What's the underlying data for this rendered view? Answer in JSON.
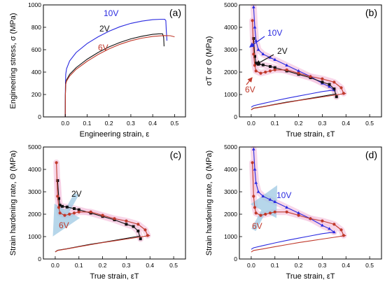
{
  "chart_data": [
    {
      "type": "line",
      "panel_label": "(a)",
      "xlabel": "Engineering strain, ε",
      "ylabel": "Engineering stress, σ (MPa)",
      "xlim": [
        -0.1,
        0.55
      ],
      "ylim": [
        0,
        1000
      ],
      "xticks": [
        "0.0",
        "0.1",
        "0.2",
        "0.3",
        "0.4",
        "0.5"
      ],
      "yticks": [
        "0",
        "200",
        "400",
        "600",
        "800",
        "1000"
      ],
      "grid": false,
      "series": [
        {
          "name": "10V",
          "color": "#2a2ae0",
          "x": [
            0,
            0.0004,
            0.002,
            0.006,
            0.02,
            0.05,
            0.1,
            0.15,
            0.2,
            0.25,
            0.3,
            0.35,
            0.4,
            0.44,
            0.455,
            0.46,
            0.462,
            0.465
          ],
          "y": [
            0,
            250,
            380,
            430,
            500,
            575,
            655,
            715,
            765,
            805,
            835,
            855,
            868,
            872,
            872,
            860,
            780,
            680
          ]
        },
        {
          "name": "2V",
          "color": "#111111",
          "x": [
            0,
            0.0004,
            0.002,
            0.006,
            0.02,
            0.05,
            0.1,
            0.15,
            0.2,
            0.25,
            0.3,
            0.35,
            0.4,
            0.43,
            0.445,
            0.45,
            0.452
          ],
          "y": [
            0,
            200,
            300,
            330,
            380,
            440,
            515,
            575,
            625,
            665,
            697,
            720,
            737,
            742,
            742,
            710,
            630
          ]
        },
        {
          "name": "6V",
          "color": "#c0392b",
          "x": [
            0,
            0.0004,
            0.002,
            0.006,
            0.02,
            0.05,
            0.1,
            0.15,
            0.2,
            0.25,
            0.3,
            0.35,
            0.4,
            0.45,
            0.48,
            0.5
          ],
          "y": [
            0,
            190,
            290,
            320,
            365,
            425,
            497,
            557,
            607,
            648,
            680,
            703,
            718,
            726,
            725,
            715
          ]
        }
      ],
      "annotations": [
        "10V",
        "2V",
        "6V"
      ]
    },
    {
      "type": "line",
      "panel_label": "(b)",
      "xlabel": "True strain, εT",
      "ylabel": "σT or Θ (MPa)",
      "xlim": [
        -0.05,
        0.55
      ],
      "ylim": [
        0,
        5000
      ],
      "xticks": [
        "0.0",
        "0.1",
        "0.2",
        "0.3",
        "0.4",
        "0.5"
      ],
      "yticks": [
        "0",
        "1000",
        "2000",
        "3000",
        "4000",
        "5000"
      ],
      "grid": false,
      "series": [
        {
          "name": "10V Θ",
          "color": "#2a2ae0",
          "marker": "triangle",
          "x": [
            0.01,
            0.015,
            0.02,
            0.03,
            0.05,
            0.08,
            0.1,
            0.15,
            0.2,
            0.25,
            0.3,
            0.33,
            0.35
          ],
          "y": [
            4900,
            4000,
            3400,
            3000,
            2800,
            2650,
            2550,
            2300,
            2050,
            1800,
            1500,
            1350,
            1200
          ]
        },
        {
          "name": "2V Θ",
          "color": "#111111",
          "marker": "square",
          "x": [
            0.01,
            0.015,
            0.02,
            0.03,
            0.05,
            0.08,
            0.1,
            0.15,
            0.2,
            0.25,
            0.3,
            0.33,
            0.35,
            0.36
          ],
          "y": [
            3500,
            2700,
            2400,
            2350,
            2320,
            2250,
            2200,
            2050,
            1900,
            1750,
            1550,
            1450,
            1250,
            900
          ]
        },
        {
          "name": "6V Θ",
          "color": "#c0392b",
          "marker": "circle",
          "x": [
            0.005,
            0.01,
            0.015,
            0.02,
            0.04,
            0.06,
            0.08,
            0.1,
            0.15,
            0.2,
            0.25,
            0.3,
            0.35,
            0.38,
            0.39
          ],
          "y": [
            4300,
            2800,
            2300,
            2050,
            1950,
            2000,
            2050,
            2100,
            2100,
            1950,
            1800,
            1700,
            1550,
            1300,
            1050
          ]
        },
        {
          "name": "10V σT",
          "color": "#2a2ae0",
          "x": [
            0,
            0.01,
            0.05,
            0.1,
            0.15,
            0.2,
            0.25,
            0.3,
            0.35
          ],
          "y": [
            430,
            500,
            600,
            720,
            830,
            930,
            1030,
            1130,
            1200
          ]
        },
        {
          "name": "2V σT",
          "color": "#111111",
          "x": [
            0,
            0.01,
            0.05,
            0.1,
            0.15,
            0.2,
            0.25,
            0.3,
            0.36
          ],
          "y": [
            320,
            390,
            460,
            560,
            660,
            740,
            830,
            920,
            1030
          ]
        },
        {
          "name": "6V σT",
          "color": "#c0392b",
          "x": [
            0,
            0.01,
            0.05,
            0.1,
            0.15,
            0.2,
            0.25,
            0.3,
            0.35,
            0.4
          ],
          "y": [
            310,
            380,
            450,
            550,
            640,
            730,
            810,
            890,
            970,
            1050
          ]
        }
      ],
      "annotations": [
        "10V",
        "2V",
        "6V"
      ]
    },
    {
      "type": "line",
      "panel_label": "(c)",
      "xlabel": "True strain, εT",
      "ylabel": "Strain hardening rate, Θ (MPa)",
      "xlim": [
        -0.05,
        0.55
      ],
      "ylim": [
        0,
        5000
      ],
      "xticks": [
        "0.0",
        "0.1",
        "0.2",
        "0.3",
        "0.4",
        "0.5"
      ],
      "yticks": [
        "0",
        "1000",
        "2000",
        "3000",
        "4000",
        "5000"
      ],
      "grid": false,
      "series": [
        {
          "name": "2V Θ",
          "color": "#111111",
          "marker": "square",
          "x": [
            0.01,
            0.015,
            0.02,
            0.03,
            0.05,
            0.08,
            0.1,
            0.15,
            0.2,
            0.25,
            0.3,
            0.33,
            0.35,
            0.36
          ],
          "y": [
            3500,
            2700,
            2400,
            2350,
            2320,
            2250,
            2200,
            2050,
            1900,
            1750,
            1550,
            1450,
            1250,
            900
          ]
        },
        {
          "name": "6V Θ",
          "color": "#c0392b",
          "marker": "circle",
          "x": [
            0.005,
            0.01,
            0.015,
            0.02,
            0.04,
            0.06,
            0.08,
            0.1,
            0.15,
            0.2,
            0.25,
            0.3,
            0.35,
            0.38,
            0.39
          ],
          "y": [
            4300,
            2800,
            2300,
            2050,
            1950,
            2000,
            2050,
            2100,
            2100,
            1950,
            1800,
            1700,
            1550,
            1300,
            1050
          ]
        },
        {
          "name": "2V σT",
          "color": "#111111",
          "x": [
            0,
            0.01,
            0.05,
            0.1,
            0.15,
            0.2,
            0.25,
            0.3,
            0.36
          ],
          "y": [
            320,
            390,
            460,
            560,
            660,
            740,
            830,
            920,
            1030
          ]
        },
        {
          "name": "6V σT",
          "color": "#c0392b",
          "x": [
            0,
            0.01,
            0.05,
            0.1,
            0.15,
            0.2,
            0.25,
            0.3,
            0.35,
            0.4
          ],
          "y": [
            310,
            380,
            450,
            550,
            640,
            730,
            810,
            890,
            970,
            1050
          ]
        }
      ],
      "annotations": [
        "2V",
        "6V"
      ]
    },
    {
      "type": "line",
      "panel_label": "(d)",
      "xlabel": "True strain, εT",
      "ylabel": "Strain hardening rate, Θ (MPa)",
      "xlim": [
        -0.05,
        0.55
      ],
      "ylim": [
        0,
        5000
      ],
      "xticks": [
        "0.0",
        "0.1",
        "0.2",
        "0.3",
        "0.4",
        "0.5"
      ],
      "yticks": [
        "0",
        "1000",
        "2000",
        "3000",
        "4000",
        "5000"
      ],
      "grid": false,
      "series": [
        {
          "name": "10V Θ",
          "color": "#2a2ae0",
          "marker": "triangle",
          "x": [
            0.01,
            0.015,
            0.02,
            0.03,
            0.05,
            0.08,
            0.1,
            0.15,
            0.2,
            0.25,
            0.3,
            0.33,
            0.35
          ],
          "y": [
            4900,
            4000,
            3400,
            3000,
            2800,
            2650,
            2550,
            2300,
            2050,
            1800,
            1500,
            1350,
            1200
          ]
        },
        {
          "name": "6V Θ",
          "color": "#c0392b",
          "marker": "circle",
          "x": [
            0.005,
            0.01,
            0.015,
            0.02,
            0.04,
            0.06,
            0.08,
            0.1,
            0.15,
            0.2,
            0.25,
            0.3,
            0.35,
            0.38,
            0.39
          ],
          "y": [
            4300,
            2800,
            2300,
            2050,
            1950,
            2000,
            2050,
            2100,
            2100,
            1950,
            1800,
            1700,
            1550,
            1300,
            1050
          ]
        },
        {
          "name": "10V σT",
          "color": "#2a2ae0",
          "x": [
            0,
            0.01,
            0.05,
            0.1,
            0.15,
            0.2,
            0.25,
            0.3,
            0.35
          ],
          "y": [
            430,
            500,
            600,
            720,
            830,
            930,
            1030,
            1130,
            1200
          ]
        },
        {
          "name": "6V σT",
          "color": "#c0392b",
          "x": [
            0,
            0.01,
            0.05,
            0.1,
            0.15,
            0.2,
            0.25,
            0.3,
            0.35,
            0.4
          ],
          "y": [
            310,
            380,
            450,
            550,
            640,
            730,
            810,
            890,
            970,
            1050
          ]
        }
      ],
      "annotations": [
        "10V",
        "6V"
      ]
    }
  ]
}
